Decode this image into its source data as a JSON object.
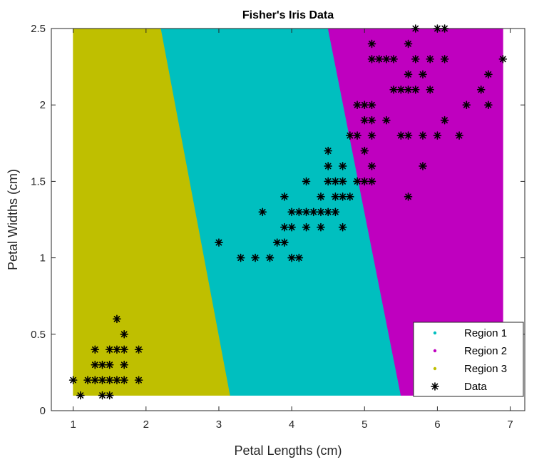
{
  "chart_data": {
    "type": "scatter",
    "title": "Fisher's Iris Data",
    "xlabel": "Petal Lengths (cm)",
    "ylabel": "Petal Widths (cm)",
    "xlim": [
      0.7,
      7.2
    ],
    "ylim": [
      0,
      2.5
    ],
    "xticks": [
      1,
      2,
      3,
      4,
      5,
      6,
      7
    ],
    "yticks": [
      0,
      0.5,
      1,
      1.5,
      2,
      2.5
    ],
    "xtick_labels": [
      "1",
      "2",
      "3",
      "4",
      "5",
      "6",
      "7"
    ],
    "ytick_labels": [
      "0",
      "0.5",
      "1",
      "1.5",
      "2",
      "2.5"
    ],
    "grid": false,
    "legend_position": "bottom-right",
    "regions_domain": {
      "x": [
        1,
        6.9
      ],
      "y": [
        0.1,
        2.5
      ]
    },
    "regions": [
      {
        "name": "Region 1",
        "color": "#00bfbf",
        "polygon": [
          [
            2.2,
            2.5
          ],
          [
            4.5,
            2.5
          ],
          [
            5.5,
            0.1
          ],
          [
            3.15,
            0.1
          ]
        ]
      },
      {
        "name": "Region 2",
        "color": "#bf00bf",
        "polygon": [
          [
            4.5,
            2.5
          ],
          [
            6.9,
            2.5
          ],
          [
            6.9,
            0.1
          ],
          [
            5.5,
            0.1
          ]
        ]
      },
      {
        "name": "Region 3",
        "color": "#bfbf00",
        "polygon": [
          [
            1.0,
            2.5
          ],
          [
            2.2,
            2.5
          ],
          [
            3.15,
            0.1
          ],
          [
            1.0,
            0.1
          ]
        ]
      }
    ],
    "series": [
      {
        "name": "Data",
        "marker": "*",
        "color": "#000000",
        "points": [
          [
            1.0,
            0.2
          ],
          [
            1.1,
            0.1
          ],
          [
            1.2,
            0.2
          ],
          [
            1.3,
            0.2
          ],
          [
            1.3,
            0.3
          ],
          [
            1.3,
            0.4
          ],
          [
            1.4,
            0.1
          ],
          [
            1.4,
            0.2
          ],
          [
            1.4,
            0.3
          ],
          [
            1.5,
            0.1
          ],
          [
            1.5,
            0.2
          ],
          [
            1.5,
            0.3
          ],
          [
            1.5,
            0.4
          ],
          [
            1.6,
            0.2
          ],
          [
            1.6,
            0.4
          ],
          [
            1.6,
            0.6
          ],
          [
            1.7,
            0.2
          ],
          [
            1.7,
            0.3
          ],
          [
            1.7,
            0.4
          ],
          [
            1.7,
            0.5
          ],
          [
            1.9,
            0.2
          ],
          [
            1.9,
            0.4
          ],
          [
            3.0,
            1.1
          ],
          [
            3.3,
            1.0
          ],
          [
            3.5,
            1.0
          ],
          [
            3.6,
            1.3
          ],
          [
            3.7,
            1.0
          ],
          [
            3.8,
            1.1
          ],
          [
            3.9,
            1.1
          ],
          [
            3.9,
            1.2
          ],
          [
            3.9,
            1.4
          ],
          [
            4.0,
            1.0
          ],
          [
            4.0,
            1.2
          ],
          [
            4.0,
            1.3
          ],
          [
            4.1,
            1.0
          ],
          [
            4.1,
            1.3
          ],
          [
            4.2,
            1.2
          ],
          [
            4.2,
            1.3
          ],
          [
            4.2,
            1.5
          ],
          [
            4.3,
            1.3
          ],
          [
            4.4,
            1.2
          ],
          [
            4.4,
            1.3
          ],
          [
            4.4,
            1.4
          ],
          [
            4.5,
            1.3
          ],
          [
            4.5,
            1.5
          ],
          [
            4.5,
            1.6
          ],
          [
            4.5,
            1.7
          ],
          [
            4.6,
            1.3
          ],
          [
            4.6,
            1.4
          ],
          [
            4.6,
            1.5
          ],
          [
            4.7,
            1.2
          ],
          [
            4.7,
            1.4
          ],
          [
            4.7,
            1.5
          ],
          [
            4.7,
            1.6
          ],
          [
            4.8,
            1.4
          ],
          [
            4.8,
            1.8
          ],
          [
            4.9,
            1.5
          ],
          [
            4.9,
            1.8
          ],
          [
            4.9,
            2.0
          ],
          [
            5.0,
            1.5
          ],
          [
            5.0,
            1.7
          ],
          [
            5.0,
            1.9
          ],
          [
            5.0,
            2.0
          ],
          [
            5.1,
            1.5
          ],
          [
            5.1,
            1.6
          ],
          [
            5.1,
            1.8
          ],
          [
            5.1,
            1.9
          ],
          [
            5.1,
            2.0
          ],
          [
            5.1,
            2.3
          ],
          [
            5.1,
            2.4
          ],
          [
            5.2,
            2.3
          ],
          [
            5.3,
            1.9
          ],
          [
            5.3,
            2.3
          ],
          [
            5.4,
            2.1
          ],
          [
            5.4,
            2.3
          ],
          [
            5.5,
            1.8
          ],
          [
            5.5,
            2.1
          ],
          [
            5.6,
            1.4
          ],
          [
            5.6,
            1.8
          ],
          [
            5.6,
            2.1
          ],
          [
            5.6,
            2.2
          ],
          [
            5.6,
            2.4
          ],
          [
            5.7,
            2.1
          ],
          [
            5.7,
            2.3
          ],
          [
            5.7,
            2.5
          ],
          [
            5.8,
            1.6
          ],
          [
            5.8,
            1.8
          ],
          [
            5.8,
            2.2
          ],
          [
            5.9,
            2.1
          ],
          [
            5.9,
            2.3
          ],
          [
            6.0,
            1.8
          ],
          [
            6.0,
            2.5
          ],
          [
            6.1,
            1.9
          ],
          [
            6.1,
            2.3
          ],
          [
            6.1,
            2.5
          ],
          [
            6.3,
            1.8
          ],
          [
            6.4,
            2.0
          ],
          [
            6.6,
            2.1
          ],
          [
            6.7,
            2.0
          ],
          [
            6.7,
            2.2
          ],
          [
            6.9,
            2.3
          ]
        ]
      }
    ],
    "legend": [
      {
        "label": "Region 1",
        "marker": "dot",
        "color": "#00bfbf"
      },
      {
        "label": "Region 2",
        "marker": "dot",
        "color": "#bf00bf"
      },
      {
        "label": "Region 3",
        "marker": "dot",
        "color": "#bfbf00"
      },
      {
        "label": "Data",
        "marker": "*",
        "color": "#000000"
      }
    ]
  }
}
